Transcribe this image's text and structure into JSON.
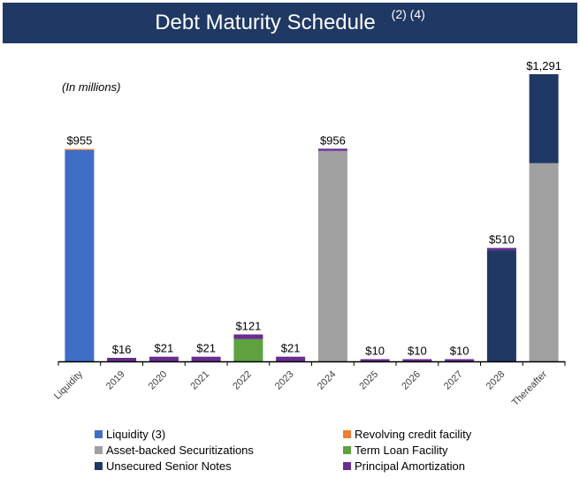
{
  "header": {
    "title": "Debt Maturity Schedule",
    "superscript": "(2) (4)"
  },
  "units_note": "(In millions)",
  "colors": {
    "liquidity": "#3f6cc5",
    "revolving": "#ed7d31",
    "abs": "#a0a0a0",
    "term_loan": "#5ea13e",
    "senior_notes": "#1f3864",
    "amortization": "#6a2c91",
    "header_bg": "#1f3864"
  },
  "chart_data": {
    "type": "bar",
    "stacked": true,
    "title": "Debt Maturity Schedule",
    "categories": [
      "Liquidity",
      "2019",
      "2020",
      "2021",
      "2022",
      "2023",
      "2024",
      "2025",
      "2026",
      "2027",
      "2028",
      "Thereafter"
    ],
    "totals": [
      "$955",
      "$16",
      "$21",
      "$21",
      "$121",
      "$21",
      "$956",
      "$10",
      "$10",
      "$10",
      "$510",
      "$1,291"
    ],
    "series": [
      {
        "name": "Liquidity (3)",
        "key": "liquidity",
        "values": [
          950,
          0,
          0,
          0,
          0,
          0,
          0,
          0,
          0,
          0,
          0,
          0
        ]
      },
      {
        "name": "Revolving credit facility",
        "key": "revolving",
        "values": [
          5,
          0,
          0,
          0,
          0,
          0,
          0,
          0,
          0,
          0,
          0,
          0
        ]
      },
      {
        "name": "Asset-backed Securitizations",
        "key": "abs",
        "values": [
          0,
          0,
          0,
          0,
          0,
          0,
          946,
          0,
          0,
          0,
          0,
          891
        ]
      },
      {
        "name": "Term Loan Facility",
        "key": "term_loan",
        "values": [
          0,
          0,
          0,
          0,
          100,
          0,
          0,
          0,
          0,
          0,
          0,
          0
        ]
      },
      {
        "name": "Unsecured Senior Notes",
        "key": "senior_notes",
        "values": [
          0,
          0,
          0,
          0,
          0,
          0,
          0,
          0,
          0,
          0,
          500,
          400
        ]
      },
      {
        "name": "Principal Amortization",
        "key": "amortization",
        "values": [
          0,
          16,
          21,
          21,
          21,
          21,
          10,
          10,
          10,
          10,
          10,
          0
        ]
      }
    ],
    "ylim": [
      0,
      1291
    ],
    "xlabel": "",
    "ylabel": ""
  },
  "legend": [
    {
      "label": "Liquidity (3)",
      "key": "liquidity"
    },
    {
      "label": "Revolving credit facility",
      "key": "revolving"
    },
    {
      "label": "Asset-backed Securitizations",
      "key": "abs"
    },
    {
      "label": "Term Loan Facility",
      "key": "term_loan"
    },
    {
      "label": "Unsecured Senior Notes",
      "key": "senior_notes"
    },
    {
      "label": "Principal Amortization",
      "key": "amortization"
    }
  ]
}
